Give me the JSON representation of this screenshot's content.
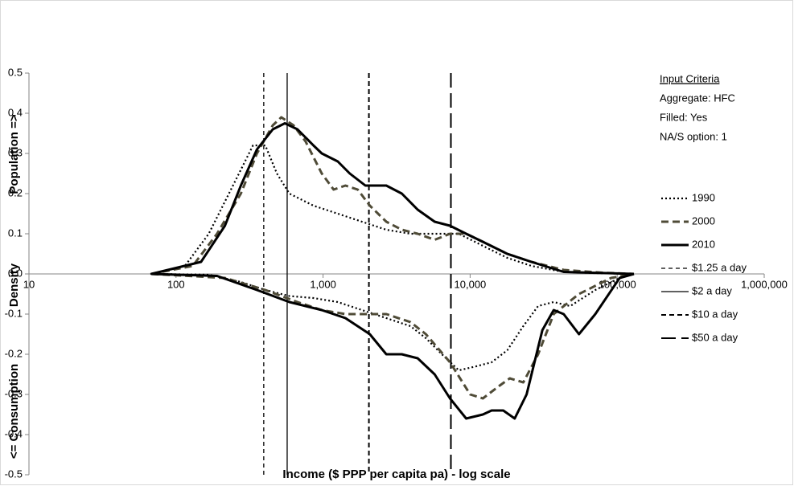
{
  "chart_data": {
    "type": "line",
    "xlabel": "Income ($ PPP per capita pa) - log scale",
    "ylabel": [
      "Population =>",
      "Density",
      "<= Consumption"
    ],
    "log_x": true,
    "xlim": [
      10,
      1000000
    ],
    "ylim": [
      -0.5,
      0.5
    ],
    "xticks": [
      10,
      100,
      {
        "value": 1000,
        "label": "1,000"
      },
      {
        "value": 10000,
        "label": "10,000"
      },
      {
        "value": 100000,
        "label": "100,000"
      },
      {
        "value": 1000000,
        "label": "1,000,000"
      }
    ],
    "yticks": [
      -0.5,
      -0.4,
      -0.3,
      -0.2,
      -0.1,
      {
        "value": 0,
        "label": "0.0"
      },
      0.1,
      0.2,
      0.3,
      0.4,
      0.5
    ],
    "input_criteria": {
      "title": "Input Criteria",
      "lines": [
        "Aggregate: HFC",
        "Filled: Yes",
        "NA/S option: 1"
      ]
    },
    "series": [
      {
        "name": "1990",
        "color": "#000000",
        "style": "dotted",
        "x": [
          67,
          115,
          167,
          244,
          334,
          405,
          485,
          590,
          860,
          1260,
          1840,
          2690,
          3930,
          5740,
          8380,
          12200,
          17900,
          26100,
          43300,
          71000,
          130000
        ],
        "values": [
          0,
          0.02,
          0.1,
          0.22,
          0.32,
          0.32,
          0.25,
          0.2,
          0.17,
          0.15,
          0.13,
          0.11,
          0.1,
          0.1,
          0.1,
          0.07,
          0.04,
          0.02,
          0.005,
          0.002,
          0
        ],
        "consumption": {
          "x": [
            67,
            167,
            276,
            405,
            590,
            860,
            1260,
            1840,
            2690,
            3930,
            5000,
            6430,
            8380,
            11000,
            14000,
            17900,
            23000,
            29000,
            37000,
            48000,
            71000,
            104000,
            130000
          ],
          "values": [
            0,
            -0.002,
            -0.02,
            -0.04,
            -0.055,
            -0.06,
            -0.07,
            -0.09,
            -0.11,
            -0.13,
            -0.16,
            -0.2,
            -0.24,
            -0.23,
            -0.22,
            -0.19,
            -0.13,
            -0.08,
            -0.07,
            -0.08,
            -0.04,
            -0.01,
            0
          ]
        }
      },
      {
        "name": "2000",
        "color": "#4f4b37",
        "style": "dashed",
        "x": [
          68,
          130,
          190,
          276,
          355,
          455,
          520,
          630,
          760,
          980,
          1180,
          1420,
          1720,
          2080,
          2690,
          3430,
          4400,
          5740,
          7300,
          9400,
          12200,
          17900,
          26100,
          43300,
          80000,
          130000
        ],
        "values": [
          0,
          0.02,
          0.1,
          0.2,
          0.3,
          0.37,
          0.39,
          0.37,
          0.33,
          0.25,
          0.21,
          0.22,
          0.21,
          0.17,
          0.13,
          0.11,
          0.1,
          0.085,
          0.1,
          0.1,
          0.08,
          0.05,
          0.03,
          0.01,
          0.003,
          0
        ],
        "consumption": {
          "x": [
            68,
            215,
            405,
            670,
            980,
            1420,
            1840,
            2690,
            3930,
            5000,
            7300,
            10000,
            12200,
            15600,
            18600,
            23000,
            29000,
            37000,
            55000,
            91000,
            130000
          ],
          "values": [
            0,
            -0.01,
            -0.04,
            -0.07,
            -0.09,
            -0.1,
            -0.1,
            -0.1,
            -0.12,
            -0.15,
            -0.22,
            -0.3,
            -0.31,
            -0.28,
            -0.26,
            -0.27,
            -0.2,
            -0.1,
            -0.05,
            -0.01,
            0
          ]
        }
      },
      {
        "name": "2010",
        "color": "#000000",
        "style": "solid",
        "x": [
          68,
          148,
          215,
          276,
          355,
          455,
          550,
          670,
          860,
          980,
          1260,
          1520,
          1940,
          2690,
          3430,
          4400,
          5740,
          7300,
          9400,
          12200,
          17900,
          26100,
          43300,
          130000
        ],
        "values": [
          0,
          0.03,
          0.12,
          0.22,
          0.31,
          0.36,
          0.375,
          0.36,
          0.32,
          0.3,
          0.28,
          0.25,
          0.22,
          0.22,
          0.2,
          0.16,
          0.13,
          0.12,
          0.1,
          0.08,
          0.05,
          0.03,
          0.005,
          0
        ],
        "consumption": {
          "x": [
            68,
            190,
            355,
            590,
            980,
            1420,
            2080,
            2690,
            3430,
            4400,
            5740,
            7300,
            9400,
            12200,
            14000,
            16800,
            20100,
            24200,
            31000,
            37000,
            43300,
            55000,
            71000,
            104000,
            130000
          ],
          "values": [
            0,
            -0.005,
            -0.04,
            -0.07,
            -0.09,
            -0.11,
            -0.15,
            -0.2,
            -0.2,
            -0.21,
            -0.25,
            -0.31,
            -0.36,
            -0.35,
            -0.34,
            -0.34,
            -0.36,
            -0.3,
            -0.14,
            -0.09,
            -0.1,
            -0.15,
            -0.1,
            -0.01,
            0
          ]
        }
      }
    ],
    "reference_lines": [
      {
        "name": "$1.25 a day",
        "x": 395,
        "color": "#000000",
        "style": "short-dash"
      },
      {
        "name": "$2 a day",
        "x": 570,
        "color": "#000000",
        "style": "solid"
      },
      {
        "name": "$10 a day",
        "x": 2050,
        "color": "#000000",
        "style": "dash"
      },
      {
        "name": "$50 a day",
        "x": 7400,
        "color": "#000000",
        "style": "long-dash"
      }
    ]
  }
}
